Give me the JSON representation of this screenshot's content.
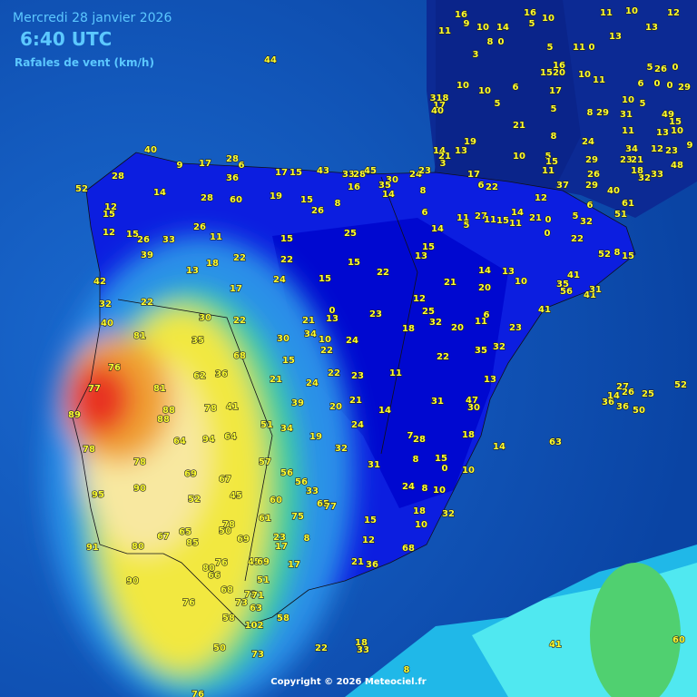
{
  "header": {
    "date": "Mercredi 28 janvier 2026",
    "time": "6:40 UTC",
    "subtitle": "Rafales de vent (km/h)"
  },
  "copyright": "Copyright © 2026 Meteociel.fr",
  "stations": [
    44,
    11,
    16,
    9,
    10,
    14,
    8,
    0,
    16,
    10,
    5,
    11,
    10,
    13,
    12,
    13,
    5,
    11,
    0,
    3,
    16,
    20,
    15,
    10,
    11,
    5,
    26,
    0,
    6,
    0,
    0,
    29,
    10,
    10,
    6,
    17,
    5,
    10,
    5,
    318,
    17,
    40,
    21,
    5,
    8,
    29,
    31,
    49,
    11,
    13,
    15,
    10,
    8,
    24,
    19,
    14,
    13,
    21,
    3,
    10,
    5,
    15,
    11,
    29,
    37,
    29,
    6,
    26,
    34,
    23,
    21,
    12,
    23,
    18,
    33,
    32,
    40,
    9,
    48,
    17,
    6,
    22,
    12,
    51,
    61,
    40,
    28,
    9,
    17,
    28,
    6,
    36,
    17,
    15,
    43,
    33,
    28,
    45,
    30,
    24,
    23,
    16,
    35,
    14,
    8,
    52,
    12,
    15,
    14,
    28,
    60,
    19,
    15,
    26,
    8,
    6,
    14,
    11,
    5,
    27,
    11,
    15,
    14,
    11,
    21,
    0,
    5,
    32,
    0,
    22,
    12,
    15,
    26,
    33,
    26,
    11,
    15,
    25,
    15,
    13,
    52,
    8,
    15,
    39,
    18,
    22,
    22,
    15,
    22,
    13,
    24,
    15,
    21,
    14,
    13,
    10,
    41,
    35,
    56,
    41,
    31,
    42,
    17,
    20,
    32,
    22,
    12,
    0,
    13,
    23,
    25,
    6,
    11,
    41,
    30,
    22,
    21,
    18,
    32,
    20,
    23,
    40,
    81,
    35,
    30,
    34,
    10,
    24,
    22,
    35,
    32,
    22,
    68,
    15,
    76,
    62,
    36,
    21,
    24,
    22,
    23,
    11,
    13,
    77,
    81,
    39,
    20,
    21,
    31,
    47,
    30,
    88,
    78,
    41,
    14,
    89,
    88,
    51,
    34,
    24,
    64,
    94,
    64,
    19,
    7,
    28,
    18,
    78,
    32,
    14,
    57,
    8,
    15,
    0,
    10,
    31,
    78,
    69,
    67,
    56,
    56,
    33,
    24,
    8,
    10,
    95,
    90,
    52,
    45,
    60,
    65,
    77,
    18,
    32,
    61,
    75,
    15,
    10,
    78,
    50,
    65,
    67,
    23,
    17,
    8,
    69,
    85,
    91,
    80,
    12,
    68,
    76,
    80,
    45,
    69,
    17,
    21,
    36,
    66,
    51,
    90,
    68,
    73,
    71,
    76,
    73,
    63,
    58,
    58,
    102,
    50,
    73,
    22,
    18,
    33,
    41,
    60,
    8,
    76,
    52,
    27,
    25,
    26,
    36,
    36,
    50,
    63,
    14
  ]
}
